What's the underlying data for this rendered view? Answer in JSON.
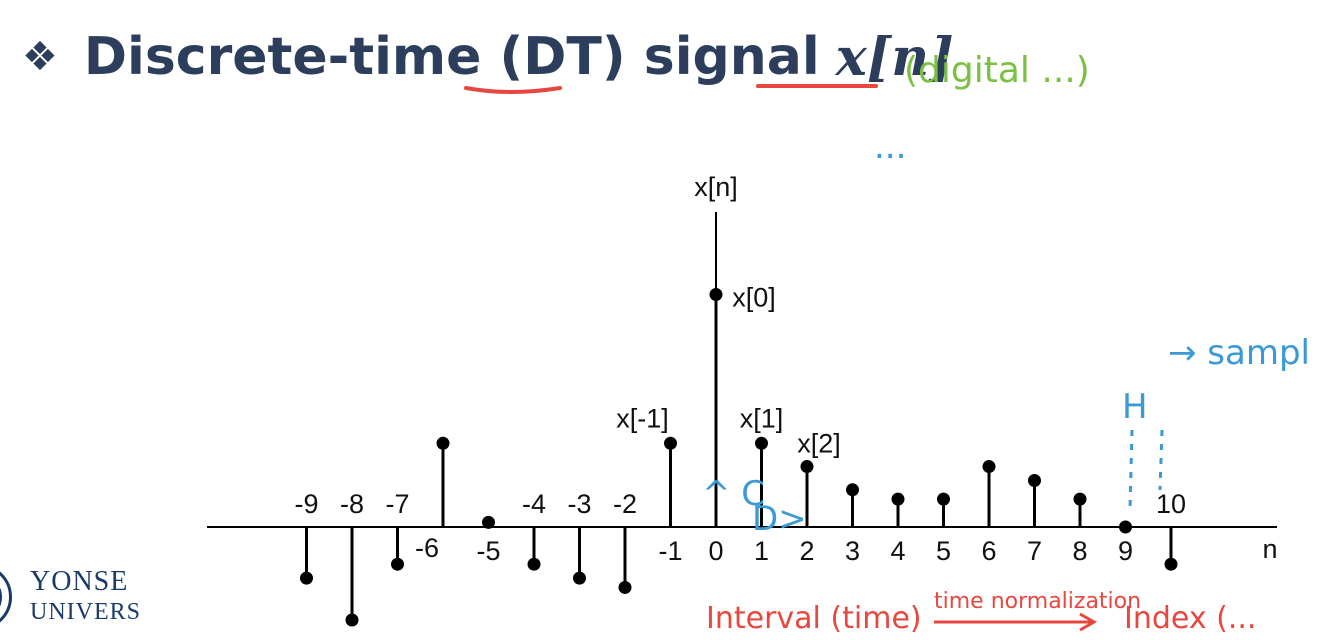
{
  "slide": {
    "bullet": "❖",
    "title": "Discrete-time (DT) signal",
    "title_symbol": "x[n]"
  },
  "logo": {
    "line1": "YONSE",
    "line2": "UNIVERS"
  },
  "annotations": {
    "green_note": "(digital ...)",
    "blue_note": "...",
    "blue_sample": "→ sampl",
    "blue_H": "H",
    "blue_curly": "^ C",
    "blue_D": "D>",
    "red_interval": "Interval (time)",
    "red_normalization": "time normalization",
    "red_index": "Index (..."
  },
  "colors": {
    "title": "#2c3e5c",
    "stem": "#000000",
    "note_green": "#7bc043",
    "note_blue": "#3b9ad6",
    "note_red": "#e8473f",
    "logo": "#1a3a6b"
  },
  "chart_data": {
    "type": "stem",
    "ylabel": "x[n]",
    "xlabel": "n",
    "n": [
      -9,
      -8,
      -7,
      -6,
      -5,
      -4,
      -3,
      -2,
      -1,
      0,
      1,
      2,
      3,
      4,
      5,
      6,
      7,
      8,
      9,
      10
    ],
    "values": [
      -0.55,
      -1.0,
      -0.4,
      0.9,
      0.05,
      -0.4,
      -0.55,
      -0.65,
      0.9,
      2.5,
      0.9,
      0.65,
      0.4,
      0.3,
      0.3,
      0.65,
      0.5,
      0.3,
      0.0,
      -0.4
    ],
    "tick_labels": [
      "-9",
      "-8",
      "-7",
      "-6",
      "-5",
      "-4",
      "-3",
      "-2",
      "-1",
      "0",
      "1",
      "2",
      "3",
      "4",
      "5",
      "6",
      "7",
      "8",
      "9",
      "10"
    ],
    "point_labels": [
      {
        "n": -1,
        "text": "x[-1]"
      },
      {
        "n": 0,
        "text": "x[0]"
      },
      {
        "n": 1,
        "text": "x[1]"
      },
      {
        "n": 2,
        "text": "x[2]"
      }
    ],
    "xlim": [
      -11.3,
      12.5
    ],
    "ylim": [
      -1.1,
      3.5
    ],
    "grid": false,
    "legend": "none"
  }
}
